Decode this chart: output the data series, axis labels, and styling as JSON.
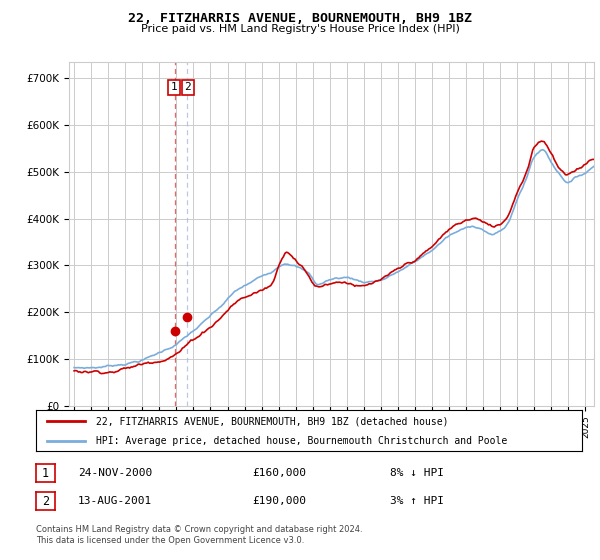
{
  "title": "22, FITZHARRIS AVENUE, BOURNEMOUTH, BH9 1BZ",
  "subtitle": "Price paid vs. HM Land Registry's House Price Index (HPI)",
  "legend_line1": "22, FITZHARRIS AVENUE, BOURNEMOUTH, BH9 1BZ (detached house)",
  "legend_line2": "HPI: Average price, detached house, Bournemouth Christchurch and Poole",
  "transaction1_date": "24-NOV-2000",
  "transaction1_price": "£160,000",
  "transaction1_hpi": "8% ↓ HPI",
  "transaction2_date": "13-AUG-2001",
  "transaction2_price": "£190,000",
  "transaction2_hpi": "3% ↑ HPI",
  "footer": "Contains HM Land Registry data © Crown copyright and database right 2024.\nThis data is licensed under the Open Government Licence v3.0.",
  "hpi_color": "#7aaddc",
  "price_color": "#cc0000",
  "vline1_color": "#dd4444",
  "vline2_color": "#aabbdd",
  "grid_color": "#cccccc",
  "background_color": "#ffffff",
  "transaction1_x": 2000.9,
  "transaction2_x": 2001.63,
  "transaction1_y": 160000,
  "transaction2_y": 190000,
  "xlim_left": 1994.7,
  "xlim_right": 2025.5,
  "ylim": [
    0,
    735000
  ],
  "yticks": [
    0,
    100000,
    200000,
    300000,
    400000,
    500000,
    600000,
    700000
  ],
  "ytick_labels": [
    "£0",
    "£100K",
    "£200K",
    "£300K",
    "£400K",
    "£500K",
    "£600K",
    "£700K"
  ]
}
